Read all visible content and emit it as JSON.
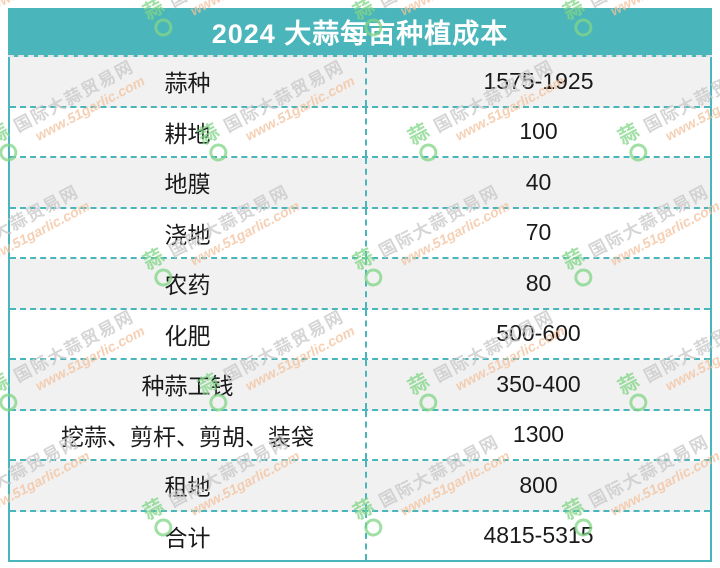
{
  "table": {
    "title": "2024 大蒜每亩种植成本",
    "header_bg": "#4AB5BA",
    "border_color": "#4AB5BA",
    "alt_row_bg": "#f1f1f1",
    "rows": [
      {
        "label": "蒜种",
        "value": "1575-1925"
      },
      {
        "label": "耕地",
        "value": "100"
      },
      {
        "label": "地膜",
        "value": "40"
      },
      {
        "label": "浇地",
        "value": "70"
      },
      {
        "label": "农药",
        "value": "80"
      },
      {
        "label": "化肥",
        "value": "500-600"
      },
      {
        "label": "种蒜工钱",
        "value": "350-400"
      },
      {
        "label": "挖蒜、剪杆、剪胡、装袋",
        "value": "1300"
      },
      {
        "label": "租地",
        "value": "800"
      },
      {
        "label": "合计",
        "value": "4815-5315"
      }
    ]
  },
  "watermark": {
    "site_name": "国际大蒜贸易网",
    "site_url": "www.51garlic.com",
    "logo_char": "蒜",
    "name_color": "#c8c8c8",
    "url_color": "#f3c19c",
    "logo_color": "#82d687"
  },
  "chart_data": {
    "type": "table",
    "title": "2024 大蒜每亩种植成本",
    "rows": [
      [
        "蒜种",
        "1575-1925"
      ],
      [
        "耕地",
        "100"
      ],
      [
        "地膜",
        "40"
      ],
      [
        "浇地",
        "70"
      ],
      [
        "农药",
        "80"
      ],
      [
        "化肥",
        "500-600"
      ],
      [
        "种蒜工钱",
        "350-400"
      ],
      [
        "挖蒜、剪杆、剪胡、装袋",
        "1300"
      ],
      [
        "租地",
        "800"
      ],
      [
        "合计",
        "4815-5315"
      ]
    ],
    "notes": "costs in yuan per mu; totals row 合计 = 4815-5315"
  }
}
